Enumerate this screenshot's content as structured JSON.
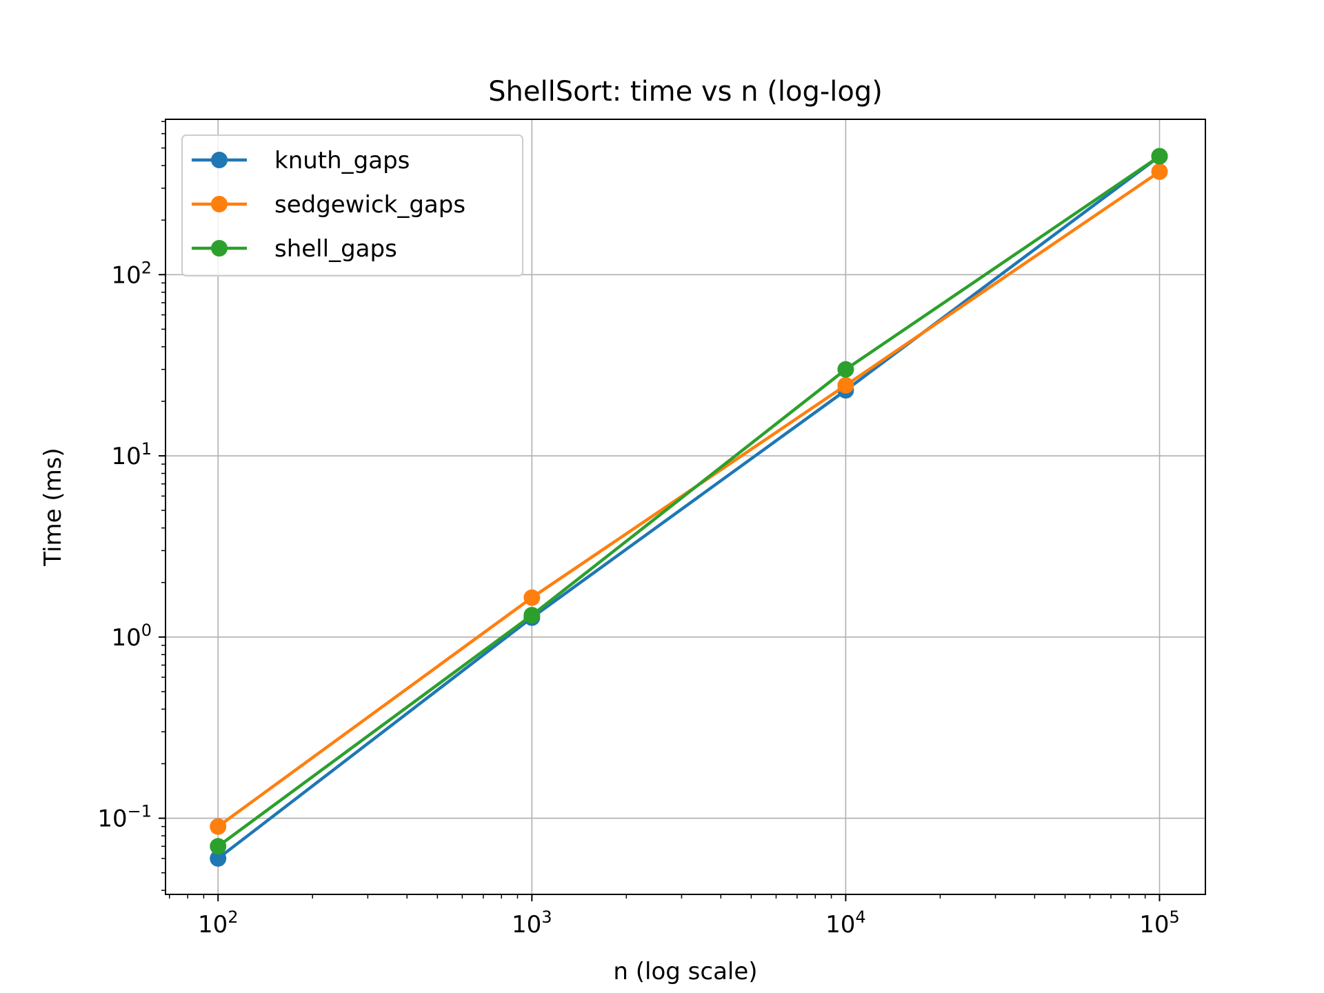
{
  "chart_data": {
    "type": "line",
    "title": "ShellSort: time vs n (log-log)",
    "xlabel": "n (log scale)",
    "ylabel": "Time (ms)",
    "xscale": "log",
    "yscale": "log",
    "xlim": [
      68,
      140000
    ],
    "ylim": [
      0.038,
      720
    ],
    "grid": true,
    "legend_position": "top-left",
    "x": [
      100,
      1000,
      10000,
      100000
    ],
    "x_ticks": [
      {
        "value": 100,
        "base": "10",
        "exp": "2"
      },
      {
        "value": 1000,
        "base": "10",
        "exp": "3"
      },
      {
        "value": 10000,
        "base": "10",
        "exp": "4"
      },
      {
        "value": 100000,
        "base": "10",
        "exp": "5"
      }
    ],
    "y_ticks": [
      {
        "value": 0.1,
        "base": "10",
        "exp": "−1"
      },
      {
        "value": 1,
        "base": "10",
        "exp": "0"
      },
      {
        "value": 10,
        "base": "10",
        "exp": "1"
      },
      {
        "value": 100,
        "base": "10",
        "exp": "2"
      }
    ],
    "series": [
      {
        "name": "knuth_gaps",
        "color": "#1f77b4",
        "values": [
          0.06,
          1.28,
          23,
          450
        ]
      },
      {
        "name": "sedgewick_gaps",
        "color": "#ff7f0e",
        "values": [
          0.09,
          1.65,
          24.5,
          370
        ]
      },
      {
        "name": "shell_gaps",
        "color": "#2ca02c",
        "values": [
          0.07,
          1.32,
          30,
          450
        ]
      }
    ]
  }
}
